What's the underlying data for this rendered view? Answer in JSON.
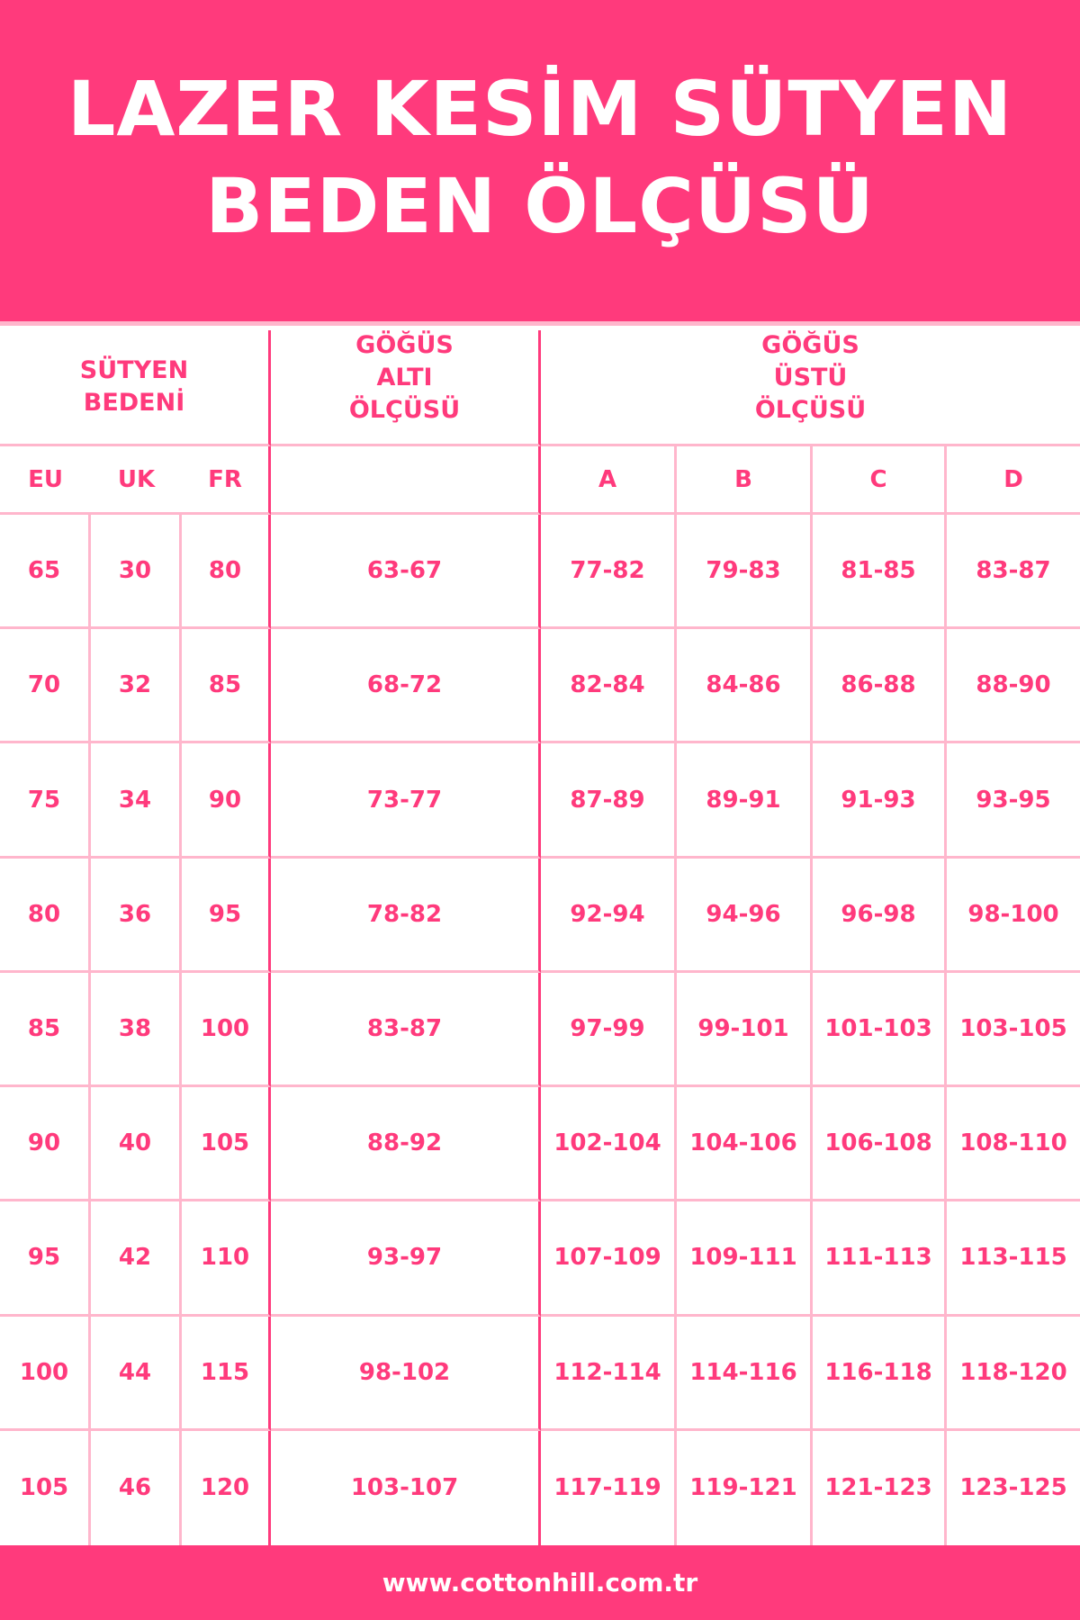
{
  "title": {
    "line1": "LAZER KESİM SÜTYEN",
    "line2": "BEDEN ÖLÇÜSÜ"
  },
  "headers": {
    "size": "SÜTYEN BEDENİ",
    "under": "GÖĞÜS ALTI ÖLÇÜSÜ",
    "over": "GÖĞÜS ÜSTÜ ÖLÇÜSÜ"
  },
  "subheaders": [
    "EU",
    "UK",
    "FR",
    "",
    "A",
    "B",
    "C",
    "D"
  ],
  "rows": [
    [
      "65",
      "30",
      "80",
      "63-67",
      "77-82",
      "79-83",
      "81-85",
      "83-87"
    ],
    [
      "70",
      "32",
      "85",
      "68-72",
      "82-84",
      "84-86",
      "86-88",
      "88-90"
    ],
    [
      "75",
      "34",
      "90",
      "73-77",
      "87-89",
      "89-91",
      "91-93",
      "93-95"
    ],
    [
      "80",
      "36",
      "95",
      "78-82",
      "92-94",
      "94-96",
      "96-98",
      "98-100"
    ],
    [
      "85",
      "38",
      "100",
      "83-87",
      "97-99",
      "99-101",
      "101-103",
      "103-105"
    ],
    [
      "90",
      "40",
      "105",
      "88-92",
      "102-104",
      "104-106",
      "106-108",
      "108-110"
    ],
    [
      "95",
      "42",
      "110",
      "93-97",
      "107-109",
      "109-111",
      "111-113",
      "113-115"
    ],
    [
      "100",
      "44",
      "115",
      "98-102",
      "112-114",
      "114-116",
      "116-118",
      "118-120"
    ],
    [
      "105",
      "46",
      "120",
      "103-107",
      "117-119",
      "119-121",
      "121-123",
      "123-125"
    ]
  ],
  "footer": "www.cottonhill.com.tr",
  "colors": {
    "accent": "#FF3A7C",
    "line": "#FFB6CC"
  }
}
